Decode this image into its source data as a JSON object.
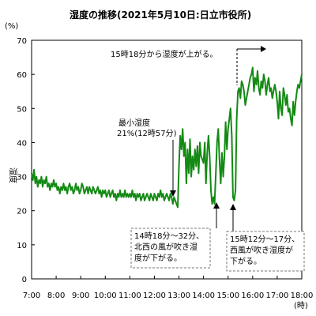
{
  "chart_data": {
    "type": "line",
    "title": "湿度の推移(2021年5月10日:日立市役所)",
    "ylabel": "湿度",
    "yunit": "(%)",
    "xunit": "(時)",
    "ylim": [
      0,
      70
    ],
    "yticks": [
      0,
      10,
      20,
      30,
      40,
      50,
      60,
      70
    ],
    "xlim": [
      7,
      18
    ],
    "xtick_labels": [
      "7:00",
      "8:00",
      "9:00",
      "10:00",
      "11:00",
      "12:00",
      "13:00",
      "14:00",
      "15:00",
      "16:00",
      "17:00",
      "18:00"
    ],
    "grid": false,
    "line_color": "#138a13",
    "series": [
      {
        "x": [
          7.0,
          7.05,
          7.1,
          7.15,
          7.2,
          7.25,
          7.3,
          7.35,
          7.4,
          7.45,
          7.5,
          7.55,
          7.6,
          7.65,
          7.7,
          7.75,
          7.8,
          7.85,
          7.9,
          7.95,
          8.0,
          8.05,
          8.1,
          8.15,
          8.2,
          8.25,
          8.3,
          8.35,
          8.4,
          8.45,
          8.5,
          8.55,
          8.6,
          8.65,
          8.7,
          8.75,
          8.8,
          8.85,
          8.9,
          8.95,
          9.0,
          9.05,
          9.1,
          9.15,
          9.2,
          9.25,
          9.3,
          9.35,
          9.4,
          9.45,
          9.5,
          9.55,
          9.6,
          9.65,
          9.7,
          9.75,
          9.8,
          9.85,
          9.9,
          9.95,
          10.0,
          10.05,
          10.1,
          10.15,
          10.2,
          10.25,
          10.3,
          10.35,
          10.4,
          10.45,
          10.5,
          10.55,
          10.6,
          10.65,
          10.7,
          10.75,
          10.8,
          10.85,
          10.9,
          10.95,
          11.0,
          11.05,
          11.1,
          11.15,
          11.2,
          11.25,
          11.3,
          11.35,
          11.4,
          11.45,
          11.5,
          11.55,
          11.6,
          11.65,
          11.7,
          11.75,
          11.8,
          11.85,
          11.9,
          11.95,
          12.0,
          12.05,
          12.1,
          12.15,
          12.2,
          12.25,
          12.3,
          12.35,
          12.4,
          12.45,
          12.5,
          12.55,
          12.6,
          12.65,
          12.7,
          12.75,
          12.8,
          12.85,
          12.9,
          12.95,
          13.0,
          13.05,
          13.1,
          13.15,
          13.2,
          13.25,
          13.3,
          13.35,
          13.4,
          13.45,
          13.5,
          13.55,
          13.6,
          13.65,
          13.7,
          13.75,
          13.8,
          13.85,
          13.9,
          13.95,
          14.0,
          14.05,
          14.1,
          14.15,
          14.2,
          14.25,
          14.3,
          14.35,
          14.4,
          14.45,
          14.5,
          14.55,
          14.6,
          14.65,
          14.7,
          14.75,
          14.8,
          14.85,
          14.9,
          14.95,
          15.0,
          15.05,
          15.1,
          15.15,
          15.2,
          15.25,
          15.3,
          15.35,
          15.4,
          15.45,
          15.5,
          15.55,
          15.6,
          15.65,
          15.7,
          15.75,
          15.8,
          15.85,
          15.9,
          15.95,
          16.0,
          16.05,
          16.1,
          16.15,
          16.2,
          16.25,
          16.3,
          16.35,
          16.4,
          16.45,
          16.5,
          16.55,
          16.6,
          16.65,
          16.7,
          16.75,
          16.8,
          16.85,
          16.9,
          16.95,
          17.0,
          17.05,
          17.1,
          17.15,
          17.2,
          17.25,
          17.3,
          17.35,
          17.4,
          17.45,
          17.5,
          17.55,
          17.6,
          17.65,
          17.7,
          17.75,
          17.8,
          17.85,
          17.9,
          17.95,
          18.0
        ],
        "y": [
          31,
          29,
          32,
          28,
          30,
          27,
          29,
          28,
          30,
          27,
          29,
          28,
          30,
          27,
          28,
          26,
          28,
          27,
          29,
          27,
          28,
          26,
          27,
          25,
          27,
          26,
          28,
          26,
          27,
          25,
          27,
          28,
          26,
          27,
          25,
          26,
          28,
          26,
          27,
          25,
          26,
          28,
          27,
          25,
          26,
          27,
          25,
          27,
          26,
          25,
          27,
          26,
          25,
          26,
          27,
          25,
          26,
          24,
          26,
          25,
          26,
          24,
          25,
          26,
          24,
          25,
          26,
          24,
          25,
          23,
          25,
          24,
          26,
          24,
          25,
          24,
          26,
          24,
          25,
          24,
          25,
          24,
          26,
          24,
          25,
          23,
          25,
          24,
          25,
          23,
          24,
          25,
          23,
          24,
          25,
          24,
          23,
          25,
          24,
          23,
          25,
          24,
          23,
          25,
          24,
          26,
          24,
          25,
          23,
          24,
          25,
          24,
          23,
          25,
          24,
          22,
          24,
          23,
          22,
          21,
          33,
          42,
          38,
          44,
          36,
          40,
          28,
          38,
          31,
          41,
          30,
          36,
          32,
          38,
          33,
          39,
          31,
          40,
          36,
          35,
          34,
          40,
          28,
          37,
          42,
          36,
          26,
          22,
          24,
          22,
          31,
          40,
          44,
          35,
          28,
          37,
          30,
          36,
          46,
          38,
          44,
          47,
          50,
          42,
          24,
          23,
          26,
          47,
          55,
          56,
          53,
          58,
          57,
          55,
          51,
          53,
          55,
          57,
          59,
          60,
          62,
          55,
          59,
          57,
          61,
          56,
          54,
          58,
          56,
          60,
          58,
          54,
          57,
          59,
          55,
          56,
          53,
          55,
          57,
          55,
          52,
          47,
          55,
          50,
          48,
          56,
          54,
          51,
          54,
          49,
          50,
          47,
          45,
          52,
          48,
          52,
          55,
          57,
          56,
          58,
          60
        ]
      }
    ],
    "annotations": {
      "min_label_1": "最小湿度",
      "min_label_2": "21%(12時57分)",
      "rise_label": "15時18分から湿度が上がる。",
      "box1": [
        "14時18分～32分、",
        "北西の風が吹き湿",
        "度が下がる。"
      ],
      "box2": [
        "15時12分～17分、",
        "西風が吹き湿度が",
        "下がる。"
      ]
    }
  }
}
